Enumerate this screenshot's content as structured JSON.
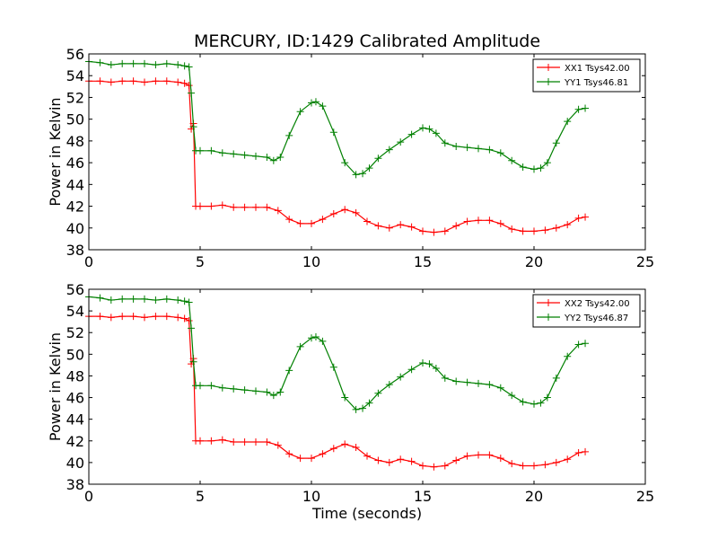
{
  "figure": {
    "title": "MERCURY, ID:1429 Calibrated Amplitude",
    "xlabel": "Time (seconds)"
  },
  "colors": {
    "red": "#ff0000",
    "green": "#008000"
  },
  "chart_data": [
    {
      "type": "line",
      "title": "MERCURY, ID:1429 Calibrated Amplitude",
      "xlabel": "",
      "ylabel": "Power in Kelvin",
      "xlim": [
        0,
        25
      ],
      "ylim": [
        38,
        56
      ],
      "xticks": [
        "0",
        "5",
        "10",
        "15",
        "20",
        "25"
      ],
      "yticks": [
        "38",
        "40",
        "42",
        "44",
        "46",
        "48",
        "50",
        "52",
        "54",
        "56"
      ],
      "grid": false,
      "legend_position": "top-right",
      "series": [
        {
          "name": "XX1 Tsys42.00",
          "color": "#ff0000",
          "x": [
            0,
            0.5,
            1,
            1.5,
            2,
            2.5,
            3,
            3.5,
            4,
            4.3,
            4.5,
            4.6,
            4.7,
            4.8,
            5,
            5.5,
            6,
            6.5,
            7,
            7.5,
            8,
            8.5,
            9,
            9.5,
            10,
            10.5,
            11,
            11.5,
            12,
            12.5,
            13,
            13.5,
            14,
            14.5,
            15,
            15.5,
            16,
            16.5,
            17,
            17.5,
            18,
            18.5,
            19,
            19.5,
            20,
            20.5,
            21,
            21.5,
            22,
            22.3
          ],
          "y": [
            53.5,
            53.5,
            53.4,
            53.5,
            53.5,
            53.4,
            53.5,
            53.5,
            53.4,
            53.3,
            53.1,
            49.1,
            49.6,
            42.0,
            42.0,
            42.0,
            42.1,
            41.9,
            41.9,
            41.9,
            41.9,
            41.6,
            40.8,
            40.4,
            40.4,
            40.8,
            41.3,
            41.7,
            41.4,
            40.6,
            40.2,
            40.0,
            40.3,
            40.1,
            39.7,
            39.6,
            39.7,
            40.2,
            40.6,
            40.7,
            40.7,
            40.4,
            39.9,
            39.7,
            39.7,
            39.8,
            40.0,
            40.3,
            40.9,
            41.0
          ]
        },
        {
          "name": "YY1 Tsys46.81",
          "color": "#008000",
          "x": [
            0,
            0.5,
            1,
            1.5,
            2,
            2.5,
            3,
            3.5,
            4,
            4.3,
            4.5,
            4.6,
            4.7,
            4.8,
            5,
            5.5,
            6,
            6.5,
            7,
            7.5,
            8,
            8.3,
            8.6,
            9,
            9.5,
            10,
            10.2,
            10.5,
            11,
            11.5,
            12,
            12.3,
            12.6,
            13,
            13.5,
            14,
            14.5,
            15,
            15.3,
            15.6,
            16,
            16.5,
            17,
            17.5,
            18,
            18.5,
            19,
            19.5,
            20,
            20.3,
            20.6,
            21,
            21.5,
            22,
            22.3
          ],
          "y": [
            55.3,
            55.2,
            55.0,
            55.1,
            55.1,
            55.1,
            55.0,
            55.1,
            55.0,
            54.9,
            54.8,
            52.4,
            49.3,
            47.1,
            47.1,
            47.1,
            46.9,
            46.8,
            46.7,
            46.6,
            46.5,
            46.2,
            46.5,
            48.5,
            50.7,
            51.5,
            51.6,
            51.2,
            48.8,
            46.0,
            44.9,
            45.0,
            45.5,
            46.4,
            47.2,
            47.9,
            48.6,
            49.2,
            49.1,
            48.7,
            47.8,
            47.5,
            47.4,
            47.3,
            47.2,
            46.9,
            46.2,
            45.6,
            45.4,
            45.5,
            46.0,
            47.8,
            49.8,
            50.9,
            51.0
          ]
        }
      ]
    },
    {
      "type": "line",
      "title": "",
      "xlabel": "Time (seconds)",
      "ylabel": "Power in Kelvin",
      "xlim": [
        0,
        25
      ],
      "ylim": [
        38,
        56
      ],
      "xticks": [
        "0",
        "5",
        "10",
        "15",
        "20",
        "25"
      ],
      "yticks": [
        "38",
        "40",
        "42",
        "44",
        "46",
        "48",
        "50",
        "52",
        "54",
        "56"
      ],
      "grid": false,
      "legend_position": "top-right",
      "series": [
        {
          "name": "XX2 Tsys42.00",
          "color": "#ff0000",
          "x": [
            0,
            0.5,
            1,
            1.5,
            2,
            2.5,
            3,
            3.5,
            4,
            4.3,
            4.5,
            4.6,
            4.7,
            4.8,
            5,
            5.5,
            6,
            6.5,
            7,
            7.5,
            8,
            8.5,
            9,
            9.5,
            10,
            10.5,
            11,
            11.5,
            12,
            12.5,
            13,
            13.5,
            14,
            14.5,
            15,
            15.5,
            16,
            16.5,
            17,
            17.5,
            18,
            18.5,
            19,
            19.5,
            20,
            20.5,
            21,
            21.5,
            22,
            22.3
          ],
          "y": [
            53.5,
            53.5,
            53.4,
            53.5,
            53.5,
            53.4,
            53.5,
            53.5,
            53.4,
            53.3,
            53.1,
            49.1,
            49.6,
            42.0,
            42.0,
            42.0,
            42.1,
            41.9,
            41.9,
            41.9,
            41.9,
            41.6,
            40.8,
            40.4,
            40.4,
            40.8,
            41.3,
            41.7,
            41.4,
            40.6,
            40.2,
            40.0,
            40.3,
            40.1,
            39.7,
            39.6,
            39.7,
            40.2,
            40.6,
            40.7,
            40.7,
            40.4,
            39.9,
            39.7,
            39.7,
            39.8,
            40.0,
            40.3,
            40.9,
            41.0
          ]
        },
        {
          "name": "YY2 Tsys46.87",
          "color": "#008000",
          "x": [
            0,
            0.5,
            1,
            1.5,
            2,
            2.5,
            3,
            3.5,
            4,
            4.3,
            4.5,
            4.6,
            4.7,
            4.8,
            5,
            5.5,
            6,
            6.5,
            7,
            7.5,
            8,
            8.3,
            8.6,
            9,
            9.5,
            10,
            10.2,
            10.5,
            11,
            11.5,
            12,
            12.3,
            12.6,
            13,
            13.5,
            14,
            14.5,
            15,
            15.3,
            15.6,
            16,
            16.5,
            17,
            17.5,
            18,
            18.5,
            19,
            19.5,
            20,
            20.3,
            20.6,
            21,
            21.5,
            22,
            22.3
          ],
          "y": [
            55.3,
            55.2,
            55.0,
            55.1,
            55.1,
            55.1,
            55.0,
            55.1,
            55.0,
            54.9,
            54.8,
            52.4,
            49.3,
            47.1,
            47.1,
            47.1,
            46.9,
            46.8,
            46.7,
            46.6,
            46.5,
            46.2,
            46.5,
            48.5,
            50.7,
            51.5,
            51.6,
            51.2,
            48.8,
            46.0,
            44.9,
            45.0,
            45.5,
            46.4,
            47.2,
            47.9,
            48.6,
            49.2,
            49.1,
            48.7,
            47.8,
            47.5,
            47.4,
            47.3,
            47.2,
            46.9,
            46.2,
            45.6,
            45.4,
            45.5,
            46.0,
            47.8,
            49.8,
            50.9,
            51.0
          ]
        }
      ]
    }
  ]
}
